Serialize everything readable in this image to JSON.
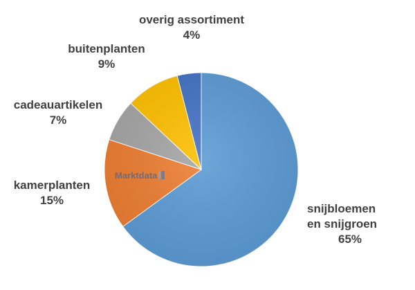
{
  "chart_data": {
    "type": "pie",
    "slices": [
      {
        "label": "snijbloemen en snijgroen",
        "label_lines": [
          "snijbloemen",
          "en snijgroen"
        ],
        "value": 65,
        "display": "65%",
        "color": "#5B9BD5"
      },
      {
        "label": "kamerplanten",
        "label_lines": [
          "kamerplanten"
        ],
        "value": 15,
        "display": "15%",
        "color": "#ED7D31"
      },
      {
        "label": "cadeauartikelen",
        "label_lines": [
          "cadeauartikelen"
        ],
        "value": 7,
        "display": "7%",
        "color": "#A5A5A5"
      },
      {
        "label": "buitenplanten",
        "label_lines": [
          "buitenplanten"
        ],
        "value": 9,
        "display": "9%",
        "color": "#FFC000"
      },
      {
        "label": "overig assortiment",
        "label_lines": [
          "overig assortiment"
        ],
        "value": 4,
        "display": "4%",
        "color": "#4472C4"
      }
    ],
    "start_angle": "12 o'clock",
    "direction": "clockwise",
    "legend": "none"
  },
  "watermark": {
    "text": "Marktdata",
    "suffix": "nl"
  }
}
